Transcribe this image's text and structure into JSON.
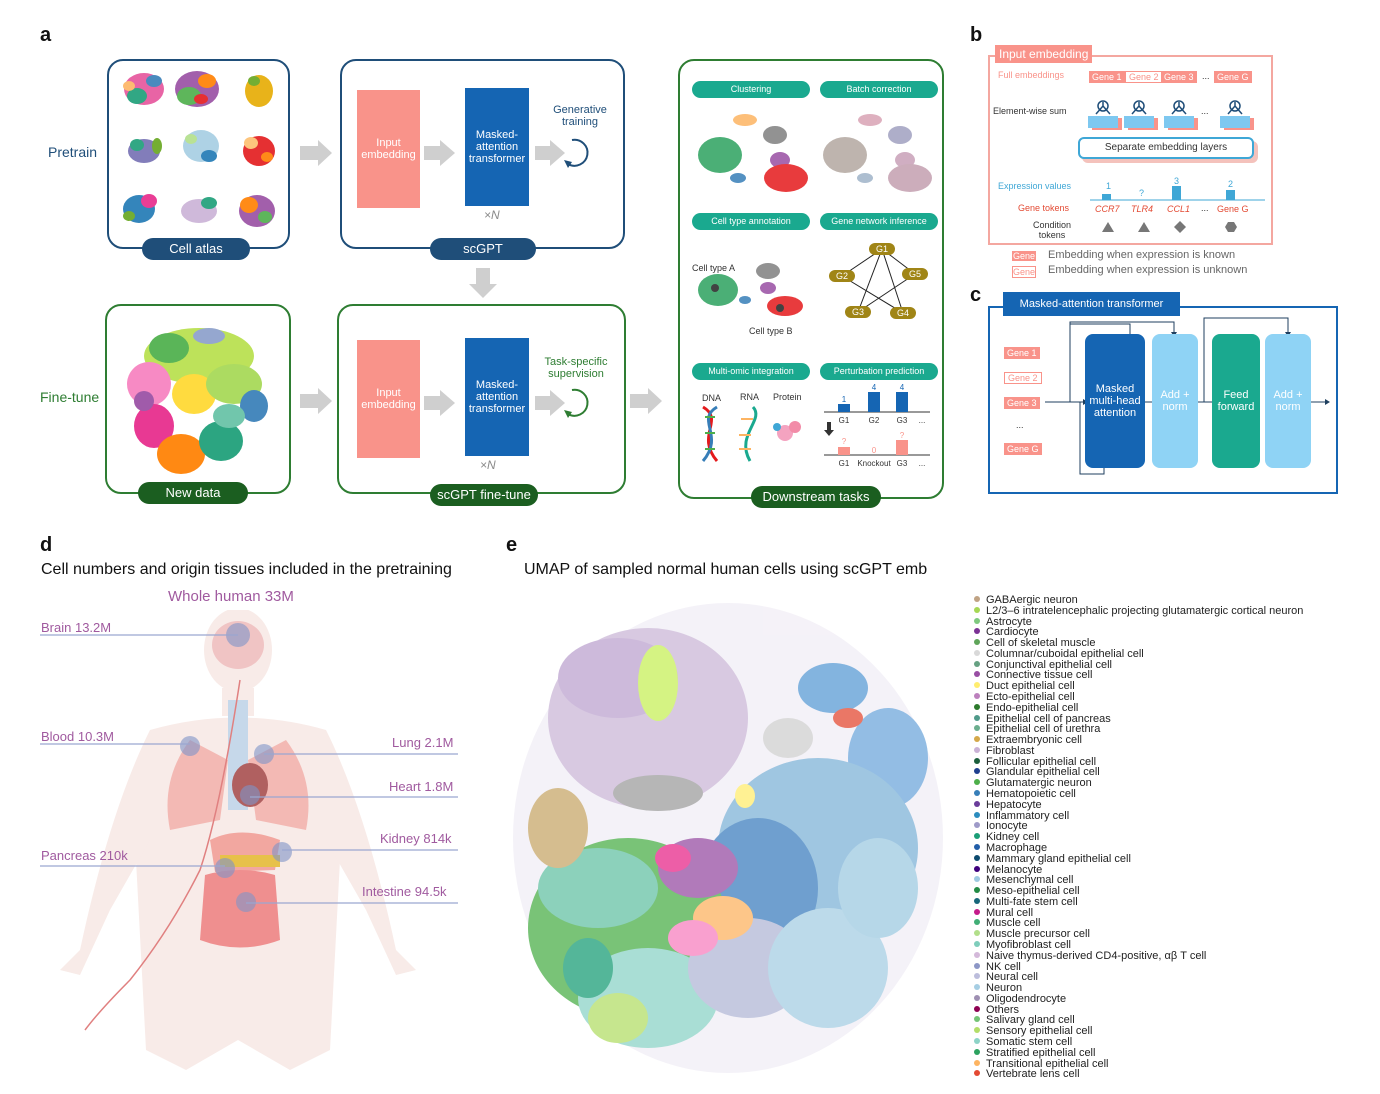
{
  "panels": {
    "a": "a",
    "b": "b",
    "c": "c",
    "d": "d",
    "e": "e"
  },
  "a": {
    "row_pretrain": "Pretrain",
    "row_finetune": "Fine-tune",
    "cell_atlas": "Cell atlas",
    "new_data": "New data",
    "scgpt": "scGPT",
    "scgpt_finetune": "scGPT fine-tune",
    "input_embedding": "Input embedding",
    "masked_attention": "Masked-attention transformer",
    "times_n": "×N",
    "generative_training": "Generative training",
    "task_specific": "Task-specific supervision",
    "downstream_tasks": "Downstream tasks",
    "tasks": {
      "clustering": "Clustering",
      "batch_correction": "Batch correction",
      "cell_type_annotation": "Cell type annotation",
      "gene_network_inference": "Gene network inference",
      "multi_omic": "Multi-omic integration",
      "perturbation": "Perturbation prediction"
    },
    "cell_type_a": "Cell type A",
    "cell_type_b": "Cell type B",
    "grn_nodes": [
      "G1",
      "G2",
      "G5",
      "G3",
      "G4"
    ],
    "omics": [
      "DNA",
      "RNA",
      "Protein"
    ],
    "perturb": {
      "top_values": [
        "1",
        "4",
        "4"
      ],
      "top_genes": [
        "G1",
        "G2",
        "G3"
      ],
      "bottom_values": [
        "?",
        "0",
        "?"
      ],
      "bottom_labels": [
        "G1",
        "Knockout",
        "G3"
      ],
      "ellipsis": "..."
    }
  },
  "b": {
    "title": "Input embedding",
    "full_embeddings": "Full embeddings",
    "genes": [
      "Gene 1",
      "Gene 2",
      "Gene 3",
      "...",
      "Gene G"
    ],
    "element_wise_sum": "Element-wise sum",
    "separate_layers": "Separate embedding layers",
    "expression_values": "Expression values",
    "expr": [
      "1",
      "?",
      "3",
      "2"
    ],
    "gene_tokens_label": "Gene tokens",
    "gene_tokens": [
      "CCR7",
      "TLR4",
      "CCL1",
      "...",
      "Gene G"
    ],
    "condition_tokens": "Condition tokens",
    "legend_gene": "Gene",
    "legend_known": "Embedding when expression is known",
    "legend_unknown": "Embedding when expression is unknown",
    "ellipsis": "..."
  },
  "c": {
    "title": "Masked-attention transformer",
    "genes": [
      "Gene 1",
      "Gene 2",
      "Gene 3",
      "...",
      "Gene G"
    ],
    "mha": "Masked multi-head attention",
    "add_norm": "Add + norm",
    "feed_forward": "Feed forward"
  },
  "d": {
    "title": "Cell numbers and origin tissues included in the pretraining",
    "whole": "Whole human 33M",
    "organs": [
      {
        "label": "Brain 13.2M"
      },
      {
        "label": "Blood 10.3M"
      },
      {
        "label": "Pancreas 210k"
      },
      {
        "label": "Lung 2.1M"
      },
      {
        "label": "Heart 1.8M"
      },
      {
        "label": "Kidney 814k"
      },
      {
        "label": "Intestine 94.5k"
      }
    ]
  },
  "e": {
    "title": "UMAP of sampled normal human cells using scGPT emb",
    "legend": [
      {
        "label": "GABAergic neuron",
        "color": "#c0a384"
      },
      {
        "label": "L2/3–6 intratelencephalic projecting glutamatergic cortical neuron",
        "color": "#a6d854"
      },
      {
        "label": "Astrocyte",
        "color": "#7fc97f"
      },
      {
        "label": "Cardiocyte",
        "color": "#7b3294"
      },
      {
        "label": "Cell of skeletal muscle",
        "color": "#5fa55a"
      },
      {
        "label": "Columnar/cuboidal epithelial cell",
        "color": "#d9d9d9"
      },
      {
        "label": "Conjunctival epithelial cell",
        "color": "#66a182"
      },
      {
        "label": "Connective tissue cell",
        "color": "#984ea3"
      },
      {
        "label": "Duct epithelial cell",
        "color": "#ffed6f"
      },
      {
        "label": "Ecto-epithelial cell",
        "color": "#bc80bd"
      },
      {
        "label": "Endo-epithelial cell",
        "color": "#2c7a2c"
      },
      {
        "label": "Epithelial cell of pancreas",
        "color": "#4f9a8a"
      },
      {
        "label": "Epithelial cell of urethra",
        "color": "#6bae8e"
      },
      {
        "label": "Extraembryonic cell",
        "color": "#d4a84a"
      },
      {
        "label": "Fibroblast",
        "color": "#cab2d6"
      },
      {
        "label": "Follicular epithelial cell",
        "color": "#1b5e3b"
      },
      {
        "label": "Glandular epithelial cell",
        "color": "#1f3f8f"
      },
      {
        "label": "Glutamatergic neuron",
        "color": "#4daf4a"
      },
      {
        "label": "Hematopoietic cell",
        "color": "#377eb8"
      },
      {
        "label": "Hepatocyte",
        "color": "#6a3d9a"
      },
      {
        "label": "Inflammatory cell",
        "color": "#2b8cbe"
      },
      {
        "label": "Ionocyte",
        "color": "#9e9ac8"
      },
      {
        "label": "Kidney cell",
        "color": "#1b9e77"
      },
      {
        "label": "Macrophage",
        "color": "#225ea8"
      },
      {
        "label": "Mammary gland epithelial cell",
        "color": "#0c4a6e"
      },
      {
        "label": "Melanocyte",
        "color": "#3f007d"
      },
      {
        "label": "Mesenchymal cell",
        "color": "#9ecae1"
      },
      {
        "label": "Meso-epithelial cell",
        "color": "#238b45"
      },
      {
        "label": "Multi-fate stem cell",
        "color": "#17667a"
      },
      {
        "label": "Mural cell",
        "color": "#c51b8a"
      },
      {
        "label": "Muscle cell",
        "color": "#41ae76"
      },
      {
        "label": "Muscle precursor cell",
        "color": "#b2df8a"
      },
      {
        "label": "Myofibroblast cell",
        "color": "#7fcdbb"
      },
      {
        "label": "Naive thymus-derived CD4-positive, αβ T cell",
        "color": "#d4b9da"
      },
      {
        "label": "NK cell",
        "color": "#8c96c6"
      },
      {
        "label": "Neural cell",
        "color": "#bcbddc"
      },
      {
        "label": "Neuron",
        "color": "#a6cee3"
      },
      {
        "label": "Oligodendrocyte",
        "color": "#9e8fb2"
      },
      {
        "label": "Others",
        "color": "#8e0152"
      },
      {
        "label": "Salivary gland cell",
        "color": "#74c476"
      },
      {
        "label": "Sensory epithelial cell",
        "color": "#b3de69"
      },
      {
        "label": "Somatic stem cell",
        "color": "#8dd3c7"
      },
      {
        "label": "Stratified epithelial cell",
        "color": "#2ca25f"
      },
      {
        "label": "Transitional epithelial cell",
        "color": "#fdb462"
      },
      {
        "label": "Vertebrate lens cell",
        "color": "#e34a33"
      }
    ]
  },
  "colors": {
    "pretrain_blue": "#1f4e79",
    "finetune_green": "#2e7d32",
    "salmon": "#f9938a",
    "transformer_blue": "#1565b3",
    "teal": "#1aa98f",
    "light_blue": "#8fd3f5",
    "organ_purple": "#a05a9f"
  }
}
